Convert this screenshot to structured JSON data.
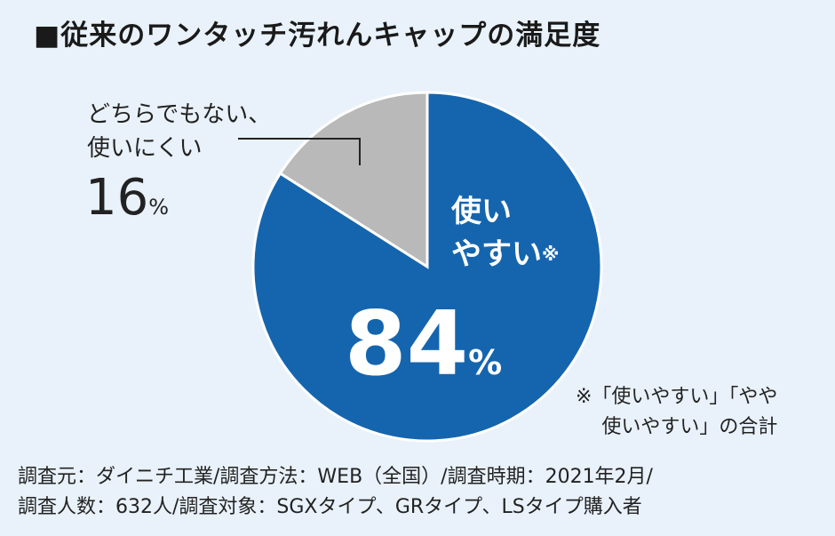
{
  "title": "■従来のワンタッチ汚れんキャップの満足度",
  "chart_data": {
    "type": "pie",
    "title": "■従来のワンタッチ汚れんキャップの満足度",
    "slices": [
      {
        "label_line1": "使い",
        "label_line2": "やすい",
        "label_mark": "※",
        "value": 84,
        "display": "84",
        "unit": "%",
        "color": "#1565ae"
      },
      {
        "label_line1": "どちらでもない、",
        "label_line2": "使いにくい",
        "value": 16,
        "display": "16",
        "unit": "%",
        "color": "#b9b9b9"
      }
    ]
  },
  "note": {
    "line1": "※「使いやすい」「やや",
    "line2": "使いやすい」の合計"
  },
  "footer": {
    "line1": "調査元：ダイニチ工業/調査方法：WEB（全国）/調査時期：2021年2月/",
    "line2": "調査人数：632人/調査対象：SGXタイプ、GRタイプ、LSタイプ購入者"
  }
}
